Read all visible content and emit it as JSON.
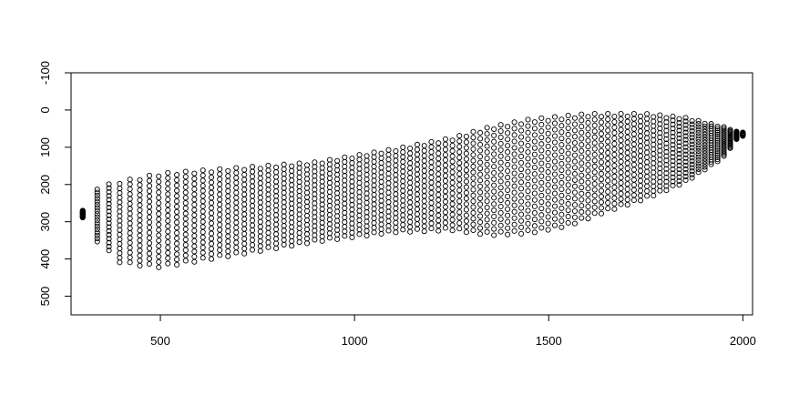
{
  "chart_data": {
    "type": "scatter",
    "title": "",
    "xlabel": "",
    "ylabel": "",
    "xlim": [
      270,
      2025
    ],
    "ylim": [
      -100,
      550
    ],
    "y_reversed": true,
    "grid": false,
    "marker": "open-circle",
    "color": "#000000",
    "x_ticks": [
      500,
      1000,
      1500,
      2000
    ],
    "x_tick_labels": [
      "500",
      "1000",
      "1500",
      "2000"
    ],
    "y_ticks": [
      -100,
      0,
      100,
      200,
      300,
      400,
      500
    ],
    "y_tick_labels": [
      "-100",
      "0",
      "100",
      "200",
      "300",
      "400",
      "500"
    ],
    "x_range": [
      300,
      2000
    ],
    "y_range": [
      20,
      430
    ],
    "columns": 90,
    "rows": 18,
    "outline_upper": [
      [
        300,
        270
      ],
      [
        320,
        215
      ],
      [
        380,
        195
      ],
      [
        500,
        170
      ],
      [
        700,
        155
      ],
      [
        900,
        140
      ],
      [
        1100,
        105
      ],
      [
        1250,
        75
      ],
      [
        1350,
        45
      ],
      [
        1450,
        25
      ],
      [
        1600,
        10
      ],
      [
        1750,
        10
      ],
      [
        1850,
        20
      ],
      [
        1950,
        45
      ],
      [
        1990,
        60
      ]
    ],
    "outline_lower": [
      [
        300,
        290
      ],
      [
        330,
        350
      ],
      [
        400,
        420
      ],
      [
        500,
        430
      ],
      [
        700,
        395
      ],
      [
        900,
        360
      ],
      [
        1100,
        335
      ],
      [
        1250,
        330
      ],
      [
        1350,
        345
      ],
      [
        1450,
        340
      ],
      [
        1550,
        320
      ],
      [
        1650,
        280
      ],
      [
        1750,
        245
      ],
      [
        1850,
        200
      ],
      [
        1950,
        130
      ],
      [
        1990,
        70
      ]
    ]
  }
}
